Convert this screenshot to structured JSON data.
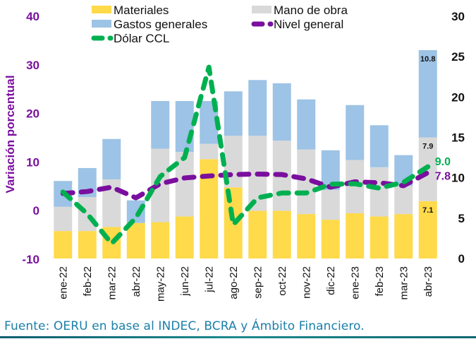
{
  "chart_data": {
    "type": "bar",
    "stacked": true,
    "title": "",
    "ylabel": "Variación porcentual",
    "xlabel": "",
    "categories": [
      "ene-22",
      "feb-22",
      "mar-22",
      "abr-22",
      "may-22",
      "jun-22",
      "jul-22",
      "ago-22",
      "sep-22",
      "oct-22",
      "nov-22",
      "dic-22",
      "ene-23",
      "feb-23",
      "mar-23",
      "abr-23"
    ],
    "y_left": {
      "range": [
        -10,
        40
      ],
      "ticks": [
        "-10",
        "0",
        "10",
        "20",
        "30",
        "40"
      ],
      "tick_values": [
        -10,
        0,
        10,
        20,
        30,
        40
      ]
    },
    "y_right": {
      "range": [
        0,
        30
      ],
      "ticks": [
        "0",
        "5",
        "10",
        "15",
        "20",
        "25",
        "30"
      ],
      "tick_values": [
        0,
        5,
        10,
        15,
        20,
        25,
        30
      ]
    },
    "grid": false,
    "legend_position": "top",
    "series": [
      {
        "name": "Materiales",
        "type": "bar",
        "axis": "right",
        "color": "#FFDA4A",
        "values": [
          3.4,
          3.4,
          3.9,
          4.4,
          4.5,
          5.2,
          12.3,
          8.8,
          5.9,
          5.9,
          5.5,
          4.8,
          5.6,
          5.2,
          5.5,
          7.1
        ]
      },
      {
        "name": "Mano de obra",
        "type": "bar",
        "axis": "right",
        "color": "#D9D9D9",
        "values": [
          3.0,
          4.2,
          5.9,
          0.0,
          9.1,
          8.0,
          1.9,
          6.4,
          9.3,
          8.7,
          8.0,
          3.7,
          6.6,
          6.1,
          3.5,
          7.9
        ]
      },
      {
        "name": "Gastos generales",
        "type": "bar",
        "axis": "right",
        "color": "#9DC3E6",
        "values": [
          3.2,
          3.6,
          5.0,
          2.8,
          5.9,
          6.3,
          5.3,
          5.5,
          6.9,
          7.1,
          6.2,
          4.9,
          6.8,
          5.2,
          3.8,
          10.8
        ]
      },
      {
        "name": "Nivel general",
        "type": "line",
        "axis": "left",
        "color": "#7A0F9E",
        "dash": true,
        "values": [
          3.5,
          3.9,
          4.8,
          2.6,
          5.5,
          6.7,
          7.1,
          7.4,
          7.5,
          7.4,
          6.5,
          4.8,
          5.9,
          5.7,
          5.1,
          7.8
        ]
      },
      {
        "name": "Dólar CCL",
        "type": "line",
        "axis": "left",
        "color": "#00B050",
        "dash": true,
        "values": [
          3.8,
          -0.7,
          -6.8,
          -1.5,
          7.0,
          10.9,
          29.5,
          -2.9,
          2.6,
          3.6,
          3.6,
          5.4,
          5.5,
          4.6,
          5.8,
          9.0
        ]
      }
    ],
    "data_labels": [
      {
        "series": "Gastos generales",
        "category": "abr-23",
        "text": "10.8"
      },
      {
        "series": "Mano de obra",
        "category": "abr-23",
        "text": "7.9"
      },
      {
        "series": "Materiales",
        "category": "abr-23",
        "text": "7.1"
      },
      {
        "series": "Dólar CCL",
        "category": "abr-23",
        "text": "9.0"
      },
      {
        "series": "Nivel general",
        "category": "abr-23",
        "text": "7.8"
      }
    ]
  },
  "legend": [
    {
      "label": "Materiales",
      "kind": "bar",
      "color": "#FFDA4A"
    },
    {
      "label": "Mano de obra",
      "kind": "bar",
      "color": "#D9D9D9"
    },
    {
      "label": "Gastos generales",
      "kind": "bar",
      "color": "#9DC3E6"
    },
    {
      "label": "Nivel general",
      "kind": "line",
      "color": "#7A0F9E"
    },
    {
      "label": "Dólar CCL",
      "kind": "line",
      "color": "#00B050"
    }
  ],
  "source": "Fuente: OERU en base al INDEC, BCRA y Ámbito Financiero."
}
